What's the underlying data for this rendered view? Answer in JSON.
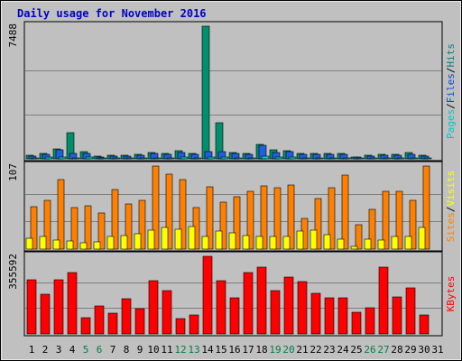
{
  "chart_data": {
    "type": "bar",
    "title": "Daily usage for November 2016",
    "categories": [
      "1",
      "2",
      "3",
      "4",
      "5",
      "6",
      "7",
      "8",
      "9",
      "10",
      "11",
      "12",
      "13",
      "14",
      "15",
      "16",
      "17",
      "18",
      "19",
      "20",
      "21",
      "22",
      "23",
      "24",
      "25",
      "26",
      "27",
      "28",
      "29",
      "30",
      "31"
    ],
    "weekend_days": [
      "5",
      "6",
      "12",
      "13",
      "19",
      "20",
      "26",
      "27"
    ],
    "panels": [
      {
        "id": "hits-files-pages",
        "ymax": 7488,
        "ymax_label": "7488",
        "side_labels": [
          {
            "text": "Pages",
            "color": "#00c8c8"
          },
          {
            "text": "Files",
            "color": "#0050c8"
          },
          {
            "text": "Hits",
            "color": "#008080"
          }
        ],
        "series": [
          {
            "name": "Hits",
            "color": "#008f6a",
            "values": [
              180,
              310,
              560,
              1470,
              430,
              140,
              200,
              210,
              240,
              360,
              290,
              440,
              300,
              7488,
              2050,
              370,
              330,
              820,
              510,
              480,
              310,
              310,
              300,
              300,
              120,
              210,
              280,
              240,
              350,
              210,
              0
            ]
          },
          {
            "name": "Files",
            "color": "#2060e0",
            "values": [
              130,
              240,
              500,
              300,
              310,
              90,
              170,
              160,
              190,
              300,
              230,
              360,
              250,
              430,
              400,
              310,
              270,
              740,
              350,
              430,
              260,
              240,
              260,
              240,
              90,
              170,
              220,
              190,
              260,
              160,
              0
            ]
          },
          {
            "name": "Pages",
            "color": "#00c8c8",
            "values": [
              40,
              80,
              100,
              60,
              80,
              20,
              40,
              40,
              50,
              70,
              60,
              90,
              60,
              100,
              90,
              70,
              60,
              130,
              80,
              90,
              60,
              60,
              60,
              60,
              20,
              40,
              50,
              50,
              60,
              40,
              0
            ]
          }
        ]
      },
      {
        "id": "visits-sites",
        "ymax": 107,
        "ymax_label": "107",
        "side_labels": [
          {
            "text": "Sites",
            "color": "#ff8000"
          },
          {
            "text": "Visits",
            "color": "#ffff00"
          }
        ],
        "series": [
          {
            "name": "Visits",
            "color": "#ff8000",
            "values": [
              55,
              63,
              90,
              53,
              56,
              46,
              77,
              58,
              63,
              107,
              97,
              89,
              53,
              80,
              61,
              68,
              74,
              81,
              79,
              83,
              39,
              65,
              79,
              95,
              31,
              51,
              74,
              74,
              63,
              107,
              0
            ]
          },
          {
            "name": "Sites",
            "color": "#ffff00",
            "values": [
              14,
              16,
              12,
              11,
              8,
              9,
              16,
              17,
              20,
              24,
              28,
              26,
              29,
              16,
              23,
              21,
              18,
              16,
              16,
              16,
              23,
              24,
              19,
              13,
              4,
              13,
              12,
              16,
              16,
              28,
              0
            ]
          }
        ]
      },
      {
        "id": "kbytes",
        "ymax": 355592,
        "ymax_label": "355592",
        "side_labels": [
          {
            "text": "KBytes",
            "color": "#ff0000"
          }
        ],
        "series": [
          {
            "name": "KBytes",
            "color": "#ff0000",
            "values": [
              250000,
              180000,
              250000,
              280000,
              75000,
              130000,
              95000,
              160000,
              115000,
              245000,
              200000,
              72000,
              85000,
              355592,
              245000,
              165000,
              280000,
              305000,
              200000,
              260000,
              240000,
              185000,
              165000,
              165000,
              100000,
              120000,
              305000,
              170000,
              210000,
              85000,
              0
            ]
          }
        ]
      }
    ]
  }
}
